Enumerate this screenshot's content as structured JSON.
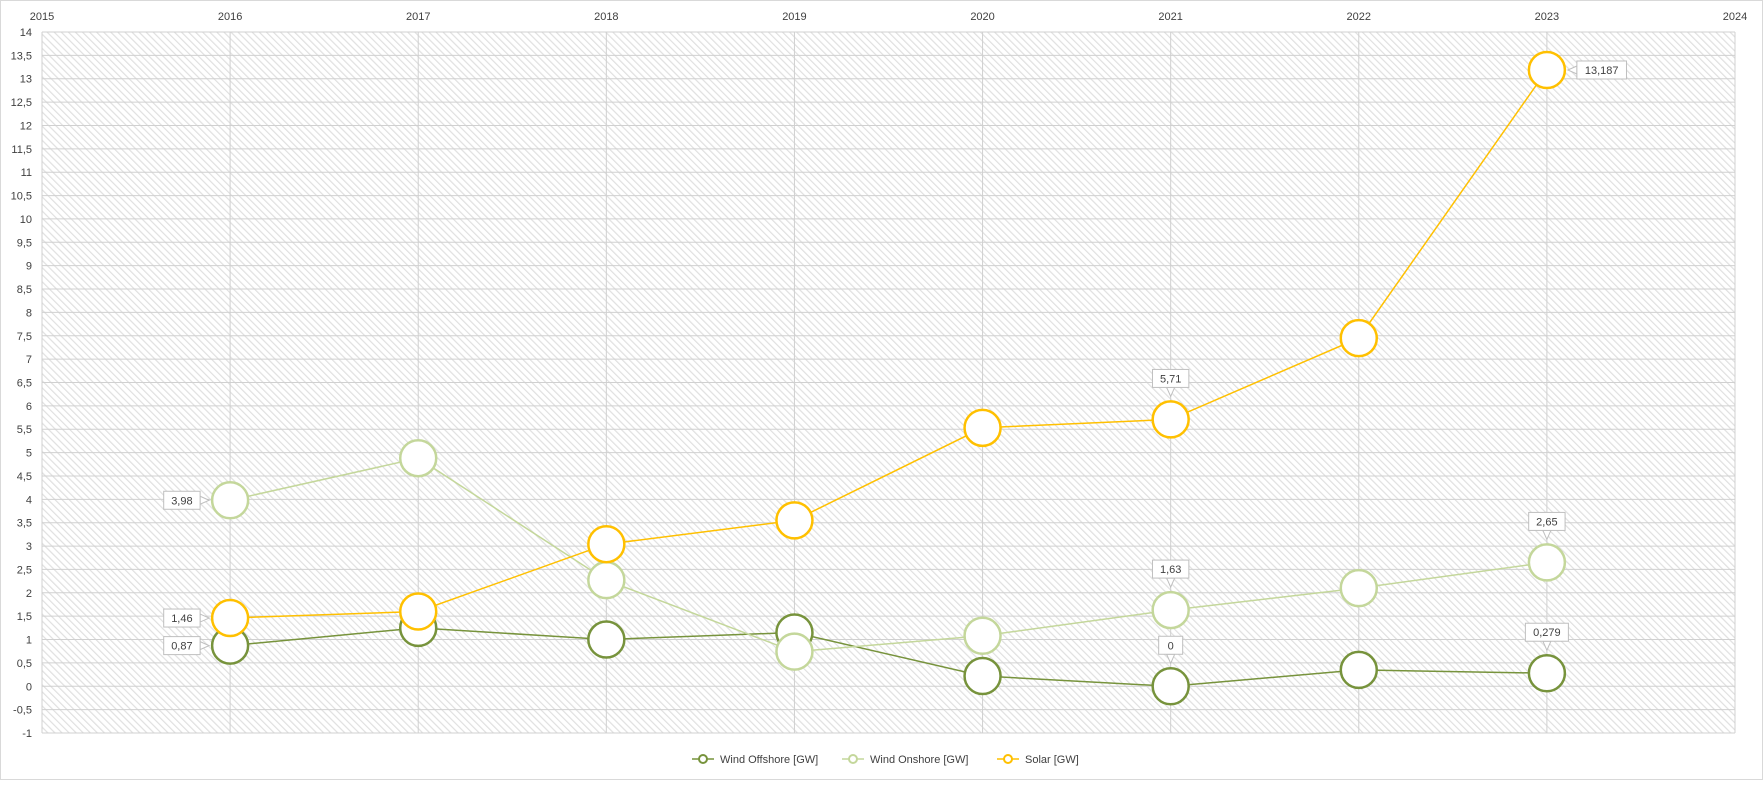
{
  "chart_data": {
    "type": "line",
    "title": "",
    "xlabel": "",
    "ylabel": "",
    "x_ticks": [
      "2015",
      "2016",
      "2017",
      "2018",
      "2019",
      "2020",
      "2021",
      "2022",
      "2023",
      "2024"
    ],
    "y_ticks": [
      "14",
      "13,5",
      "13",
      "12,5",
      "12",
      "11,5",
      "11",
      "10,5",
      "10",
      "9,5",
      "9",
      "8,5",
      "8",
      "7,5",
      "7",
      "6,5",
      "6",
      "5,5",
      "5",
      "4,5",
      "4",
      "3,5",
      "3",
      "2,5",
      "2",
      "1,5",
      "1",
      "0,5",
      "0",
      "-0,5",
      "-1"
    ],
    "xlim": [
      2015,
      2024
    ],
    "ylim": [
      -1,
      14
    ],
    "grid": true,
    "legend_position": "bottom",
    "x": [
      2016,
      2017,
      2018,
      2019,
      2020,
      2021,
      2022,
      2023
    ],
    "series": [
      {
        "name": "Wind Offshore [GW]",
        "color": "#77933c",
        "values": [
          0.87,
          1.25,
          1.0,
          1.15,
          0.22,
          0,
          0.35,
          0.279
        ],
        "labels": [
          {
            "index": 0,
            "text": "0,87",
            "side": "left"
          },
          {
            "index": 5,
            "text": "0",
            "side": "top"
          },
          {
            "index": 7,
            "text": "0,279",
            "side": "top"
          }
        ]
      },
      {
        "name": "Wind Onshore [GW]",
        "color": "#c4d79b",
        "values": [
          3.98,
          4.88,
          2.27,
          0.74,
          1.08,
          1.63,
          2.1,
          2.65
        ],
        "labels": [
          {
            "index": 0,
            "text": "3,98",
            "side": "left"
          },
          {
            "index": 5,
            "text": "1,63",
            "side": "top"
          },
          {
            "index": 7,
            "text": "2,65",
            "side": "top"
          }
        ]
      },
      {
        "name": "Solar [GW]",
        "color": "#ffc000",
        "values": [
          1.46,
          1.6,
          3.04,
          3.55,
          5.53,
          5.71,
          7.45,
          13.187
        ],
        "labels": [
          {
            "index": 0,
            "text": "1,46",
            "side": "left"
          },
          {
            "index": 5,
            "text": "5,71",
            "side": "top"
          },
          {
            "index": 7,
            "text": "13,187",
            "side": "right"
          }
        ]
      }
    ]
  },
  "legend": {
    "items": [
      {
        "label": "Wind Offshore [GW]",
        "color": "#77933c"
      },
      {
        "label": "Wind Onshore [GW]",
        "color": "#c4d79b"
      },
      {
        "label": "Solar [GW]",
        "color": "#ffc000"
      }
    ]
  }
}
